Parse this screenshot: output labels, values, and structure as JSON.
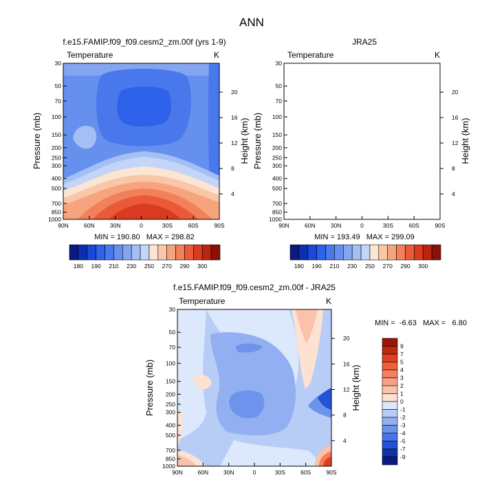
{
  "figure": {
    "title": "ANN"
  },
  "chart_data": [
    {
      "type": "heatmap",
      "id": "model",
      "title": "f.e15.FAMIP.f09_f09.cesm2_zm.00f (yrs 1-9)",
      "corner_left": "Temperature",
      "corner_right": "K",
      "xlabel": "",
      "ylabel": "Pressure (mb)",
      "y2label": "Height (km)",
      "x_ticks": [
        "90N",
        "60N",
        "30N",
        "0",
        "30S",
        "60S",
        "90S"
      ],
      "y_ticks": [
        "30",
        "50",
        "70",
        "100",
        "150",
        "200",
        "250",
        "300",
        "400",
        "500",
        "700",
        "850",
        "1000"
      ],
      "y2_ticks": [
        "20",
        "16",
        "12",
        "8",
        "4"
      ],
      "stats": "MIN = 190.80   MAX = 298.82",
      "min": 190.8,
      "max": 298.82,
      "lat_range": [
        90,
        -90
      ],
      "pressure_range": [
        30,
        1000
      ]
    },
    {
      "type": "heatmap",
      "id": "obs",
      "title": "JRA25",
      "corner_left": "Temperature",
      "corner_right": "K",
      "xlabel": "",
      "ylabel": "Pressure (mb)",
      "y2label": "Height (km)",
      "x_ticks": [
        "90N",
        "60N",
        "30N",
        "0",
        "30S",
        "60S",
        "90S"
      ],
      "y_ticks": [
        "30",
        "50",
        "70",
        "100",
        "150",
        "200",
        "250",
        "300",
        "400",
        "500",
        "700",
        "850",
        "1000"
      ],
      "y2_ticks": [
        "20",
        "16",
        "12",
        "8",
        "4"
      ],
      "stats": "MIN = 193.49   MAX = 299.09",
      "min": 193.49,
      "max": 299.09,
      "lat_range": [
        90,
        -90
      ],
      "pressure_range": [
        30,
        1000
      ]
    },
    {
      "type": "heatmap",
      "id": "diff",
      "title": "f.e15.FAMIP.f09_f09.cesm2_zm.00f - JRA25",
      "corner_left": "Temperature",
      "corner_right": "K",
      "xlabel": "",
      "ylabel": "Pressure (mb)",
      "y2label": "Height (km)",
      "x_ticks": [
        "90N",
        "60N",
        "30N",
        "0",
        "30S",
        "60S",
        "90S"
      ],
      "y_ticks": [
        "30",
        "50",
        "70",
        "100",
        "150",
        "200",
        "250",
        "300",
        "400",
        "500",
        "700",
        "850",
        "1000"
      ],
      "y2_ticks": [
        "20",
        "16",
        "12",
        "8",
        "4"
      ],
      "stats": "MIN =  -6.63   MAX =   6.80",
      "min": -6.63,
      "max": 6.8,
      "lat_range": [
        90,
        -90
      ],
      "pressure_range": [
        30,
        1000
      ]
    }
  ],
  "colorbar_abs": {
    "labels": [
      "180",
      "190",
      "210",
      "230",
      "250",
      "270",
      "290",
      "300"
    ],
    "colors": [
      "#0a1a80",
      "#0c2fb0",
      "#1a48d8",
      "#2e62ea",
      "#4878ec",
      "#6690ee",
      "#84a6f0",
      "#a4bff4",
      "#c4d6f8",
      "#fde5d3",
      "#fac6a8",
      "#f6a47e",
      "#f2805a",
      "#ea5a38",
      "#da3a20",
      "#ba2410",
      "#8c0f08"
    ]
  },
  "colorbar_diff": {
    "labels": [
      "9",
      "7",
      "5",
      "4",
      "3",
      "2",
      "1",
      "0",
      "-1",
      "-2",
      "-3",
      "-4",
      "-5",
      "-7",
      "-9"
    ],
    "colors": [
      "#9c1508",
      "#c02810",
      "#de4020",
      "#f0603a",
      "#f48060",
      "#f7a286",
      "#fac2aa",
      "#fde2d2",
      "#dce8fb",
      "#b8cdf6",
      "#92b0f1",
      "#6d93ed",
      "#4a75ea",
      "#2452d4",
      "#1032a8",
      "#0a1a80"
    ]
  },
  "colors": {
    "abs_bg": "#6690ee",
    "abs_upper": "#84a6f0",
    "abs_cold": "#4878ec",
    "abs_core": "#2e62ea",
    "abs_patch": "#a4bff4",
    "abs_band": "#c4d6f8",
    "abs_warm": [
      "#fde5d3",
      "#fac6a8",
      "#f6a47e",
      "#f2805a",
      "#ea5a38",
      "#da3a20"
    ],
    "diff_bg": "#b8cdf6",
    "diff_light": "#dce8fb",
    "diff_mid": "#92b0f1",
    "diff_dark": "#6d93ed",
    "diff_deep": "#2452d4",
    "diff_pos1": "#fde2d2",
    "diff_pos2": "#fac2aa",
    "diff_pos3": "#f4805a",
    "diff_pos4": "#de4020"
  }
}
